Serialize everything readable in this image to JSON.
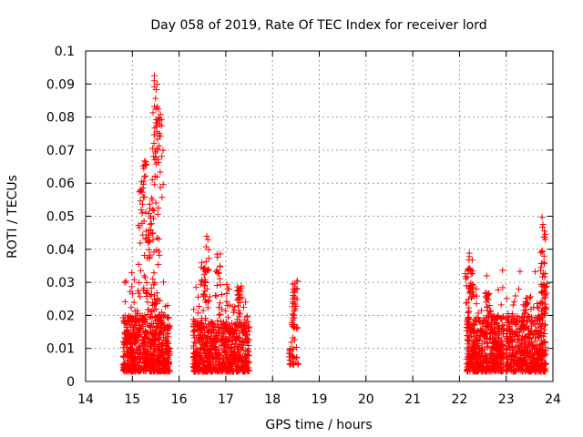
{
  "chart_data": {
    "type": "scatter",
    "title": "Day 058 of 2019, Rate Of TEC Index for receiver lord",
    "xlabel": "GPS time / hours",
    "ylabel": "ROTI / TECUs",
    "xlim": [
      14,
      24
    ],
    "ylim": [
      0,
      0.1
    ],
    "xticks": [
      "14",
      "15",
      "16",
      "17",
      "18",
      "19",
      "20",
      "21",
      "22",
      "23",
      "24"
    ],
    "yticks": [
      "0",
      "0.01",
      "0.02",
      "0.03",
      "0.04",
      "0.05",
      "0.06",
      "0.07",
      "0.08",
      "0.09",
      "0.1"
    ],
    "grid": true,
    "marker": "+",
    "marker_color": "#ff0000",
    "series": [
      {
        "name": "ROTI",
        "clusters": [
          {
            "x_range": [
              14.8,
              15.8
            ],
            "y_base": [
              0.003,
              0.02
            ],
            "peaks": [
              [
                15.5,
                0.094
              ],
              [
                15.5,
                0.083
              ],
              [
                15.6,
                0.086
              ],
              [
                15.25,
                0.067
              ],
              [
                15.5,
                0.071
              ],
              [
                15.4,
                0.056
              ],
              [
                15.2,
                0.062
              ],
              [
                15.35,
                0.047
              ]
            ],
            "density": 700
          },
          {
            "x_range": [
              16.3,
              17.5
            ],
            "y_base": [
              0.003,
              0.018
            ],
            "peaks": [
              [
                16.6,
                0.045
              ],
              [
                16.85,
                0.04
              ],
              [
                17.3,
                0.029
              ],
              [
                16.5,
                0.036
              ]
            ],
            "density": 700
          },
          {
            "x_range": [
              18.35,
              18.55
            ],
            "y_base": [
              0.005,
              0.01
            ],
            "peaks": [
              [
                18.5,
                0.032
              ],
              [
                18.45,
                0.028
              ]
            ],
            "density": 30
          },
          {
            "x_range": [
              22.15,
              22.95
            ],
            "y_base": [
              0.003,
              0.02
            ],
            "peaks": [
              [
                22.2,
                0.039
              ],
              [
                22.25,
                0.034
              ],
              [
                22.6,
                0.027
              ]
            ],
            "density": 500
          },
          {
            "x_range": [
              23.0,
              23.85
            ],
            "y_base": [
              0.003,
              0.02
            ],
            "peaks": [
              [
                23.8,
                0.05
              ],
              [
                23.8,
                0.037
              ],
              [
                23.8,
                0.031
              ],
              [
                23.4,
                0.027
              ]
            ],
            "density": 500
          }
        ]
      }
    ]
  }
}
